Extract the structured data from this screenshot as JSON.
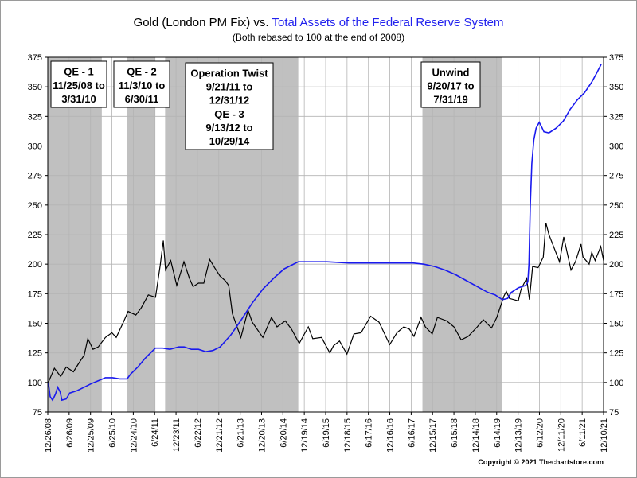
{
  "chart_data": {
    "type": "line",
    "title_part1": "Gold (London PM Fix) vs. ",
    "title_part2": "Total Assets of the Federal Reserve System",
    "subtitle": "(Both rebased to 100 at the end of 2008)",
    "ylim": [
      75,
      375
    ],
    "y_ticks": [
      75,
      100,
      125,
      150,
      175,
      200,
      225,
      250,
      275,
      300,
      325,
      350,
      375
    ],
    "x_start": "2008-12-26",
    "x_end": "2021-12-10",
    "x_ticks": [
      "12/26/08",
      "6/26/09",
      "12/25/09",
      "6/25/10",
      "12/24/10",
      "6/24/11",
      "12/23/11",
      "6/22/12",
      "12/21/12",
      "6/21/13",
      "12/20/13",
      "6/20/14",
      "12/19/14",
      "6/19/15",
      "12/18/15",
      "6/17/16",
      "12/16/16",
      "6/16/17",
      "12/15/17",
      "6/15/18",
      "12/14/18",
      "6/14/19",
      "12/13/19",
      "6/12/20",
      "12/11/20",
      "6/11/21",
      "12/10/21"
    ],
    "grid": true,
    "colors": {
      "gold": "#000000",
      "fed": "#1a1aee",
      "shade": "#c0c0c0",
      "grid": "#b4b4b4"
    },
    "shaded_periods": [
      {
        "start": "2008-11-25",
        "end": "2010-03-31"
      },
      {
        "start": "2010-11-03",
        "end": "2011-06-30"
      },
      {
        "start": "2011-09-21",
        "end": "2014-10-29"
      },
      {
        "start": "2017-09-20",
        "end": "2019-07-31"
      }
    ],
    "annotations": [
      {
        "lines": [
          "QE - 1",
          "11/25/08 to",
          "3/31/10"
        ]
      },
      {
        "lines": [
          "QE - 2",
          "11/3/10 to",
          "6/30/11"
        ]
      },
      {
        "lines": [
          "Operation Twist",
          "9/21/11 to",
          "12/31/12",
          "QE - 3",
          "9/13/12 to",
          "10/29/14"
        ]
      },
      {
        "lines": [
          "Unwind",
          "9/20/17 to",
          "7/31/19"
        ]
      }
    ],
    "series": [
      {
        "name": "Gold (London PM Fix)",
        "points": [
          [
            "2008-12-31",
            100
          ],
          [
            "2009-02-20",
            112
          ],
          [
            "2009-04-15",
            105
          ],
          [
            "2009-06-01",
            113
          ],
          [
            "2009-08-01",
            109
          ],
          [
            "2009-09-15",
            116
          ],
          [
            "2009-11-01",
            123
          ],
          [
            "2009-12-02",
            137
          ],
          [
            "2010-01-15",
            128
          ],
          [
            "2010-03-01",
            130
          ],
          [
            "2010-05-01",
            138
          ],
          [
            "2010-06-25",
            142
          ],
          [
            "2010-08-01",
            138
          ],
          [
            "2010-10-01",
            151
          ],
          [
            "2010-11-10",
            160
          ],
          [
            "2011-01-15",
            157
          ],
          [
            "2011-03-01",
            163
          ],
          [
            "2011-05-01",
            174
          ],
          [
            "2011-07-01",
            172
          ],
          [
            "2011-08-10",
            199
          ],
          [
            "2011-09-06",
            220
          ],
          [
            "2011-09-25",
            195
          ],
          [
            "2011-11-08",
            203
          ],
          [
            "2011-12-29",
            182
          ],
          [
            "2012-02-28",
            202
          ],
          [
            "2012-04-15",
            188
          ],
          [
            "2012-05-16",
            181
          ],
          [
            "2012-07-01",
            184
          ],
          [
            "2012-08-15",
            184
          ],
          [
            "2012-10-04",
            204
          ],
          [
            "2012-11-15",
            197
          ],
          [
            "2012-12-31",
            190
          ],
          [
            "2013-02-15",
            186
          ],
          [
            "2013-03-15",
            182
          ],
          [
            "2013-04-16",
            158
          ],
          [
            "2013-06-27",
            138
          ],
          [
            "2013-08-27",
            161
          ],
          [
            "2013-10-01",
            151
          ],
          [
            "2013-12-31",
            138
          ],
          [
            "2014-03-14",
            155
          ],
          [
            "2014-05-01",
            147
          ],
          [
            "2014-07-10",
            152
          ],
          [
            "2014-09-01",
            145
          ],
          [
            "2014-11-06",
            133
          ],
          [
            "2015-01-22",
            147
          ],
          [
            "2015-03-01",
            137
          ],
          [
            "2015-05-15",
            138
          ],
          [
            "2015-07-24",
            125
          ],
          [
            "2015-08-25",
            131
          ],
          [
            "2015-10-15",
            135
          ],
          [
            "2015-12-17",
            124
          ],
          [
            "2016-02-15",
            141
          ],
          [
            "2016-04-15",
            142
          ],
          [
            "2016-07-06",
            156
          ],
          [
            "2016-09-15",
            151
          ],
          [
            "2016-12-15",
            132
          ],
          [
            "2017-02-15",
            142
          ],
          [
            "2017-04-15",
            147
          ],
          [
            "2017-06-01",
            145
          ],
          [
            "2017-07-10",
            139
          ],
          [
            "2017-09-08",
            155
          ],
          [
            "2017-10-15",
            147
          ],
          [
            "2017-12-12",
            141
          ],
          [
            "2018-01-25",
            155
          ],
          [
            "2018-04-15",
            152
          ],
          [
            "2018-06-15",
            147
          ],
          [
            "2018-08-16",
            136
          ],
          [
            "2018-10-15",
            139
          ],
          [
            "2018-12-31",
            147
          ],
          [
            "2019-02-20",
            153
          ],
          [
            "2019-05-01",
            146
          ],
          [
            "2019-06-15",
            155
          ],
          [
            "2019-08-15",
            173
          ],
          [
            "2019-09-04",
            177
          ],
          [
            "2019-10-01",
            171
          ],
          [
            "2019-12-15",
            169
          ],
          [
            "2020-01-08",
            179
          ],
          [
            "2020-02-24",
            188
          ],
          [
            "2020-03-19",
            170
          ],
          [
            "2020-04-15",
            198
          ],
          [
            "2020-06-01",
            197
          ],
          [
            "2020-07-15",
            206
          ],
          [
            "2020-08-06",
            235
          ],
          [
            "2020-09-01",
            225
          ],
          [
            "2020-11-30",
            202
          ],
          [
            "2021-01-05",
            223
          ],
          [
            "2021-03-08",
            195
          ],
          [
            "2021-04-15",
            202
          ],
          [
            "2021-06-01",
            217
          ],
          [
            "2021-06-18",
            206
          ],
          [
            "2021-08-09",
            200
          ],
          [
            "2021-09-01",
            210
          ],
          [
            "2021-09-29",
            203
          ],
          [
            "2021-11-16",
            215
          ],
          [
            "2021-12-10",
            203
          ]
        ]
      },
      {
        "name": "Total Assets of the Federal Reserve System",
        "points": [
          [
            "2008-12-31",
            100
          ],
          [
            "2009-01-15",
            88
          ],
          [
            "2009-02-05",
            85
          ],
          [
            "2009-03-01",
            90
          ],
          [
            "2009-03-20",
            96
          ],
          [
            "2009-04-10",
            92
          ],
          [
            "2009-04-25",
            85
          ],
          [
            "2009-06-01",
            86
          ],
          [
            "2009-07-01",
            91
          ],
          [
            "2009-09-01",
            93
          ],
          [
            "2009-11-01",
            96
          ],
          [
            "2010-01-01",
            99
          ],
          [
            "2010-03-15",
            102
          ],
          [
            "2010-05-01",
            104
          ],
          [
            "2010-07-01",
            104
          ],
          [
            "2010-09-01",
            103
          ],
          [
            "2010-11-01",
            103
          ],
          [
            "2010-12-01",
            107
          ],
          [
            "2011-02-01",
            113
          ],
          [
            "2011-04-01",
            120
          ],
          [
            "2011-06-30",
            129
          ],
          [
            "2011-09-01",
            129
          ],
          [
            "2011-11-01",
            128
          ],
          [
            "2012-01-15",
            130
          ],
          [
            "2012-03-01",
            130
          ],
          [
            "2012-05-01",
            128
          ],
          [
            "2012-07-01",
            128
          ],
          [
            "2012-09-01",
            126
          ],
          [
            "2012-11-01",
            127
          ],
          [
            "2013-01-01",
            130
          ],
          [
            "2013-04-01",
            140
          ],
          [
            "2013-07-01",
            153
          ],
          [
            "2013-10-01",
            167
          ],
          [
            "2014-01-01",
            179
          ],
          [
            "2014-04-01",
            188
          ],
          [
            "2014-07-01",
            196
          ],
          [
            "2014-10-29",
            202
          ],
          [
            "2015-03-01",
            202
          ],
          [
            "2015-07-01",
            202
          ],
          [
            "2016-01-01",
            201
          ],
          [
            "2016-07-01",
            201
          ],
          [
            "2017-01-01",
            201
          ],
          [
            "2017-07-01",
            201
          ],
          [
            "2017-10-01",
            200
          ],
          [
            "2018-01-01",
            198
          ],
          [
            "2018-04-01",
            195
          ],
          [
            "2018-07-01",
            191
          ],
          [
            "2018-10-01",
            186
          ],
          [
            "2019-01-01",
            181
          ],
          [
            "2019-04-01",
            176
          ],
          [
            "2019-06-01",
            174
          ],
          [
            "2019-08-01",
            170
          ],
          [
            "2019-09-15",
            171
          ],
          [
            "2019-10-15",
            176
          ],
          [
            "2019-12-15",
            180
          ],
          [
            "2020-02-15",
            182
          ],
          [
            "2020-03-05",
            185
          ],
          [
            "2020-03-15",
            200
          ],
          [
            "2020-03-26",
            250
          ],
          [
            "2020-04-08",
            285
          ],
          [
            "2020-04-25",
            305
          ],
          [
            "2020-05-15",
            315
          ],
          [
            "2020-06-10",
            320
          ],
          [
            "2020-07-01",
            316
          ],
          [
            "2020-07-20",
            312
          ],
          [
            "2020-09-01",
            311
          ],
          [
            "2020-11-01",
            315
          ],
          [
            "2021-01-01",
            321
          ],
          [
            "2021-03-01",
            331
          ],
          [
            "2021-05-01",
            339
          ],
          [
            "2021-07-01",
            345
          ],
          [
            "2021-09-01",
            354
          ],
          [
            "2021-10-15",
            362
          ],
          [
            "2021-11-20",
            369
          ]
        ]
      }
    ]
  },
  "copyright": "Copyright © 2021 Thechartstore.com"
}
